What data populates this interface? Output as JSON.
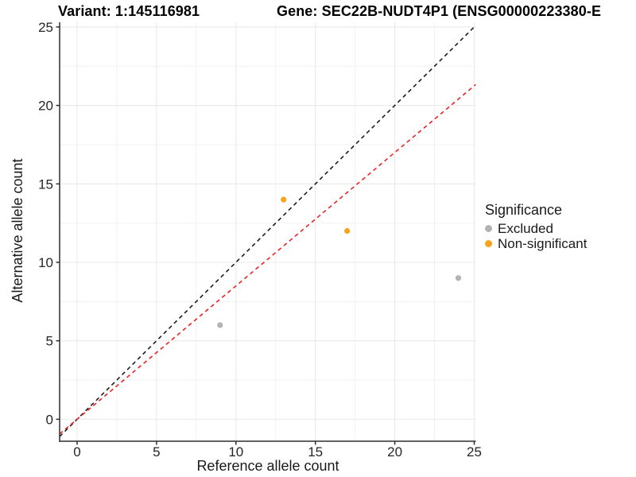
{
  "chart_data": {
    "type": "scatter",
    "variant_title": "Variant: 1:145116981",
    "gene_title": "Gene: SEC22B-NUDT4P1 (ENSG00000223380-E",
    "xlabel": "Reference allele count",
    "ylabel": "Alternative allele count",
    "xlim": [
      -1.1,
      25.1
    ],
    "ylim": [
      -1.4,
      25.3
    ],
    "xticks": [
      0,
      5,
      10,
      15,
      20,
      25
    ],
    "yticks": [
      0,
      5,
      10,
      15,
      20,
      25
    ],
    "xticks_minor": [
      2.5,
      7.5,
      12.5,
      17.5,
      22.5
    ],
    "yticks_minor": [
      2.5,
      7.5,
      12.5,
      17.5,
      22.5
    ],
    "grid": true,
    "points": [
      {
        "x": 9,
        "y": 6,
        "group": "Excluded"
      },
      {
        "x": 13,
        "y": 14,
        "group": "Non-significant"
      },
      {
        "x": 17,
        "y": 12,
        "group": "Non-significant"
      },
      {
        "x": 24,
        "y": 9,
        "group": "Excluded"
      }
    ],
    "reference_lines": [
      {
        "name": "identity",
        "slope": 1,
        "intercept": 0,
        "color": "#1c1c1c",
        "style": "dashed"
      },
      {
        "name": "expected-ratio",
        "slope": 0.85,
        "intercept": 0,
        "color": "#ee2222",
        "style": "dashed"
      }
    ],
    "group_colors": {
      "Excluded": "#b3b3b3",
      "Non-significant": "#f8a41e"
    },
    "legend": {
      "title": "Significance",
      "position": "right",
      "items": [
        {
          "label": "Excluded",
          "color": "#b3b3b3"
        },
        {
          "label": "Non-significant",
          "color": "#f8a41e"
        }
      ]
    },
    "style": {
      "axis_color": "#2f2f2f",
      "tick_label_color": "#262626",
      "grid_major_color": "#eaeaea",
      "grid_minor_color": "#f2f2f2",
      "background": "#ffffff"
    }
  }
}
